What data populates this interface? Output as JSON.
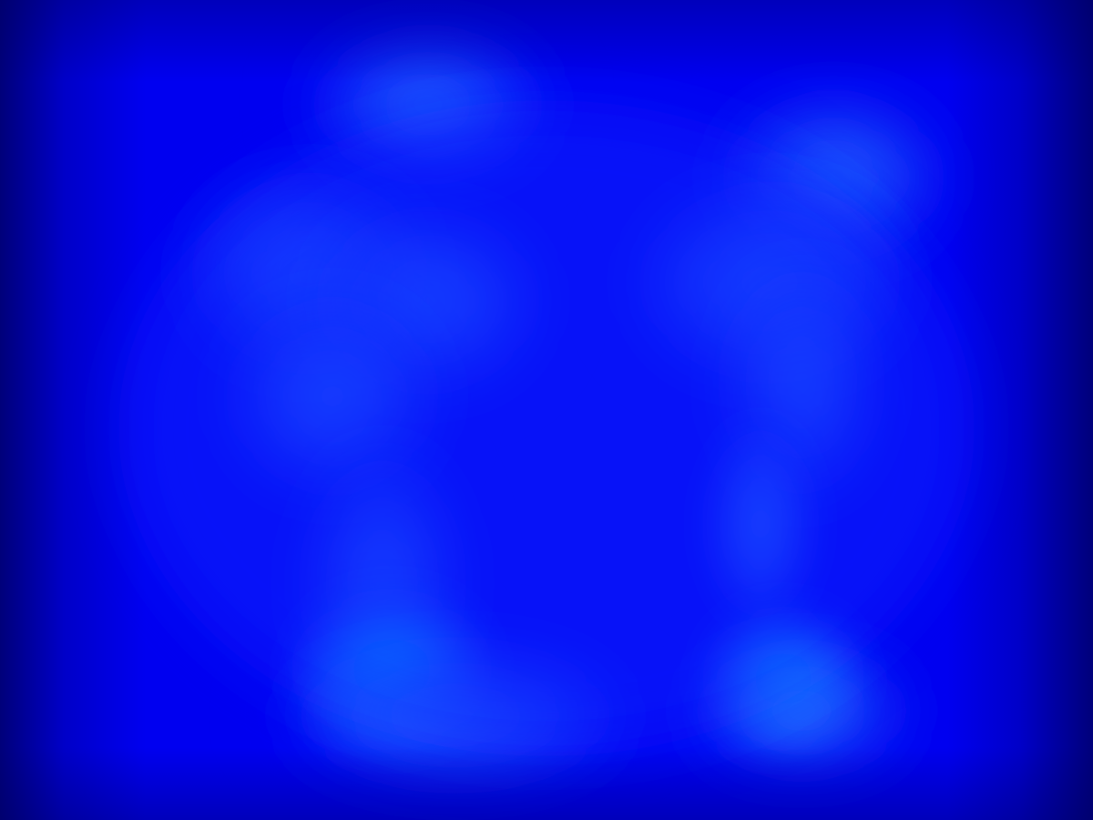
{
  "scene": {
    "colors": {
      "background": "#0000f0",
      "edge_dark": "#00007a",
      "glow_mid": "#1f5cff",
      "glow_bright": "#00c8ff",
      "glow_soft": "#2a6dff"
    }
  }
}
